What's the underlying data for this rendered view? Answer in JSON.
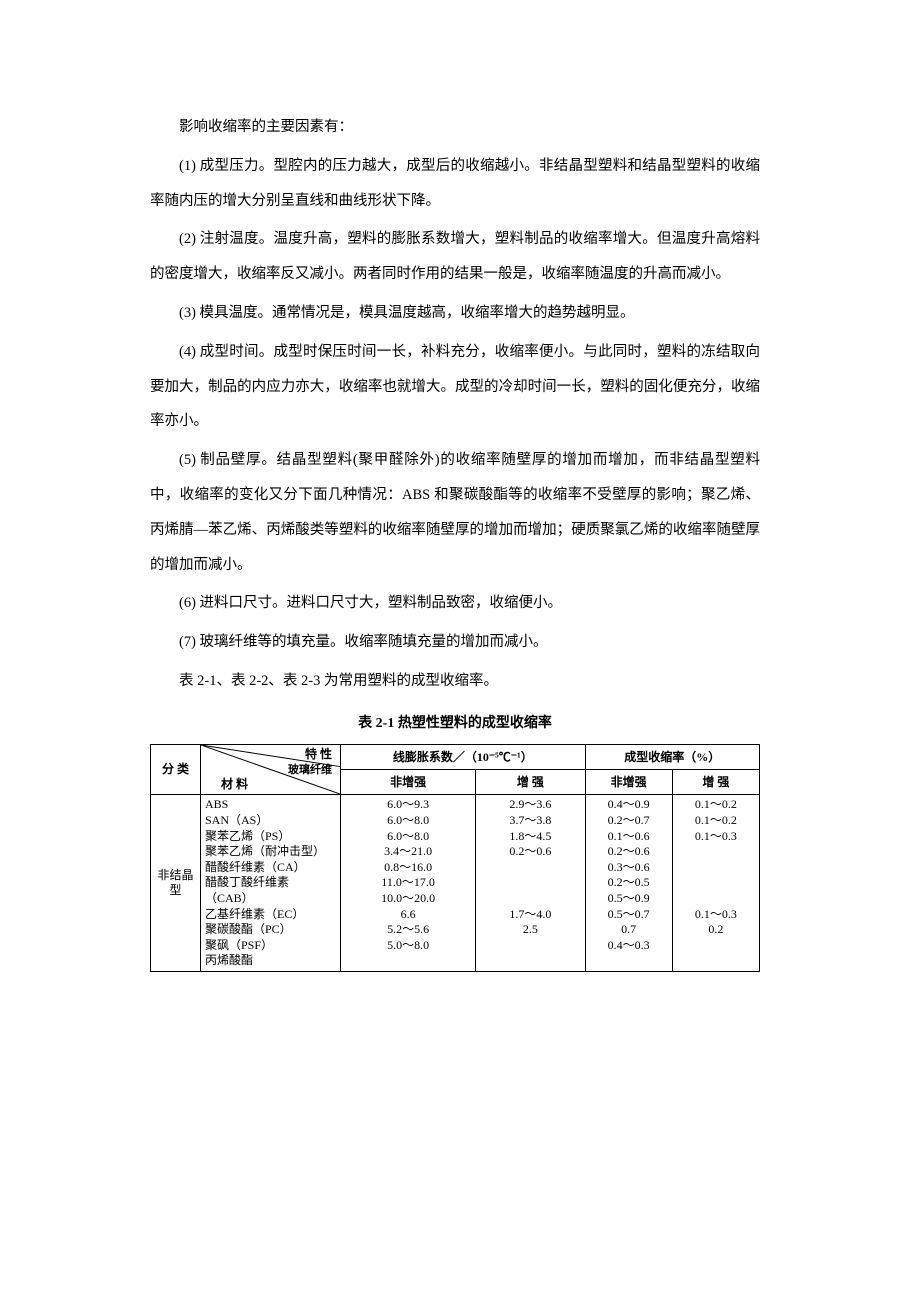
{
  "paragraphs": {
    "intro": "影响收缩率的主要因素有：",
    "p1": "(1) 成型压力。型腔内的压力越大，成型后的收缩越小。非结晶型塑料和结晶型塑料的收缩率随内压的增大分别呈直线和曲线形状下降。",
    "p2": "(2) 注射温度。温度升高，塑料的膨胀系数增大，塑料制品的收缩率增大。但温度升高熔料的密度增大，收缩率反又减小。两者同时作用的结果一般是，收缩率随温度的升高而减小。",
    "p3": "(3) 模具温度。通常情况是，模具温度越高，收缩率增大的趋势越明显。",
    "p4": "(4) 成型时间。成型时保压时间一长，补料充分，收缩率便小。与此同时，塑料的冻结取向要加大，制品的内应力亦大，收缩率也就增大。成型的冷却时间一长，塑料的固化便充分，收缩率亦小。",
    "p5": "(5) 制品壁厚。结晶型塑料(聚甲醛除外)的收缩率随壁厚的增加而增加，而非结晶型塑料中，收缩率的变化又分下面几种情况：ABS 和聚碳酸酯等的收缩率不受壁厚的影响；聚乙烯、丙烯腈—苯乙烯、丙烯酸类等塑料的收缩率随壁厚的增加而增加；硬质聚氯乙烯的收缩率随壁厚的增加而减小。",
    "p6": "(6) 进料口尺寸。进料口尺寸大，塑料制品致密，收缩便小。",
    "p7": "(7) 玻璃纤维等的填充量。收缩率随填充量的增加而减小。",
    "p8": "表 2-1、表 2-2、表 2-3 为常用塑料的成型收缩率。"
  },
  "table": {
    "caption": "表 2-1  热塑性塑料的成型收缩率",
    "diag": {
      "top": "特  性",
      "mid": "玻璃纤维",
      "bot": "材       料"
    },
    "header_cat": "分  类",
    "header_expansion": "线膨胀系数／（10⁻⁵℃⁻¹）",
    "header_shrink": "成型收缩率（%）",
    "sub_no": "非增强",
    "sub_yes": "增  强",
    "category": "非结晶型",
    "materials": "ABS\nSAN（AS）\n聚苯乙烯（PS）\n聚苯乙烯（耐冲击型）\n醋酸纤维素（CA）\n醋酸丁酸纤维素（CAB）\n乙基纤维素（EC）\n聚碳酸酯（PC）\n聚砜（PSF）\n丙烯酸酯",
    "exp_no": "6.0～9.3\n6.0～8.0\n6.0～8.0\n3.4～21.0\n0.8～16.0\n11.0～17.0\n10.0～20.0\n6.6\n5.2～5.6\n5.0～8.0",
    "exp_yes": "2.9～3.6\n3.7～3.8\n1.8～4.5\n0.2～0.6\n\n\n\n1.7～4.0\n2.5\n",
    "shr_no": "0.4～0.9\n0.2～0.7\n0.1～0.6\n0.2～0.6\n0.3～0.6\n0.2～0.5\n0.5～0.9\n0.5～0.7\n0.7\n0.4～0.3",
    "shr_yes": "0.1～0.2\n0.1～0.2\n0.1～0.3\n\n\n\n\n0.1～0.3\n0.2\n"
  },
  "style": {
    "text_color": "#000000",
    "bg_color": "#ffffff",
    "body_fontsize": 14.5,
    "table_fontsize": 12,
    "line_height": 2.4
  }
}
